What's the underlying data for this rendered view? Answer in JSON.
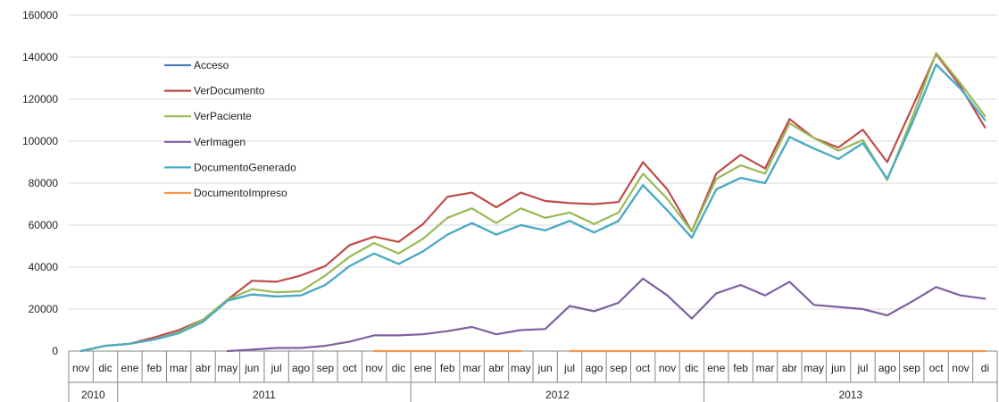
{
  "chart_data": {
    "type": "line",
    "title": "",
    "xlabel": "",
    "ylabel": "",
    "ylim": [
      0,
      160000
    ],
    "yticks": [
      0,
      20000,
      40000,
      60000,
      80000,
      100000,
      120000,
      140000,
      160000
    ],
    "y_tick_labels": [
      "0",
      "20000",
      "40000",
      "60000",
      "80000",
      "100000",
      "120000",
      "140000",
      "160000"
    ],
    "grid": "horizontal",
    "legend_position": "upper-left inside plot",
    "categories": [
      "nov",
      "dic",
      "ene",
      "feb",
      "mar",
      "abr",
      "may",
      "jun",
      "jul",
      "ago",
      "sep",
      "oct",
      "nov",
      "dic",
      "ene",
      "feb",
      "mar",
      "abr",
      "may",
      "jun",
      "jul",
      "ago",
      "sep",
      "oct",
      "nov",
      "dic",
      "ene",
      "feb",
      "mar",
      "abr",
      "may",
      "jun",
      "jul",
      "ago",
      "sep",
      "oct",
      "nov",
      "dic"
    ],
    "category_axis_visible_text": [
      "nov",
      "dic",
      "ene",
      "feb",
      "mar",
      "abr",
      "may",
      "jun",
      "jul",
      "ago",
      "sep",
      "oct",
      "nov",
      "dic",
      "ene",
      "feb",
      "mar",
      "abr",
      "may",
      "jun",
      "jul",
      "ago",
      "sep",
      "oct",
      "nov",
      "dic",
      "ene",
      "feb",
      "mar",
      "abr",
      "may",
      "jun",
      "jul",
      "ago",
      "sep",
      "oct",
      "nov",
      "di"
    ],
    "year_groups": [
      {
        "label": "2010",
        "start": 0,
        "end": 1
      },
      {
        "label": "2011",
        "start": 2,
        "end": 13
      },
      {
        "label": "2012",
        "start": 14,
        "end": 25
      },
      {
        "label": "2013",
        "start": 26,
        "end": 37
      }
    ],
    "series": [
      {
        "name": "Acceso",
        "color": "#4a7ebb",
        "values": [
          0,
          2500,
          3500,
          5500,
          8500,
          14000,
          24000,
          27000,
          26000,
          26500,
          31500,
          40500,
          46500,
          41500,
          47500,
          55500,
          61000,
          55500,
          60000,
          57500,
          62000,
          56500,
          62000,
          79000,
          67000,
          54000,
          77000,
          82500,
          80000,
          102000,
          96500,
          91500,
          99000,
          82000,
          108000,
          136500,
          125000,
          110000
        ]
      },
      {
        "name": "VerDocumento",
        "color": "#be4b48",
        "values": [
          0,
          2500,
          3500,
          6500,
          10000,
          15000,
          24500,
          33500,
          33000,
          36000,
          40500,
          50500,
          54500,
          52000,
          60500,
          73500,
          75500,
          68500,
          75500,
          71500,
          70500,
          70000,
          71000,
          90000,
          77000,
          57000,
          84500,
          93500,
          87000,
          110500,
          101500,
          97000,
          105500,
          90000,
          115500,
          141500,
          126000,
          106500
        ]
      },
      {
        "name": "VerPaciente",
        "color": "#98b954",
        "values": [
          0,
          2500,
          3500,
          5500,
          9000,
          15000,
          24500,
          29500,
          28000,
          28500,
          36000,
          45000,
          51500,
          46500,
          53500,
          63500,
          68000,
          61000,
          68000,
          63500,
          66000,
          60500,
          66000,
          84500,
          72500,
          57000,
          82000,
          88500,
          84500,
          108500,
          101500,
          95500,
          100500,
          81500,
          110500,
          142000,
          127500,
          112000
        ]
      },
      {
        "name": "VerImagen",
        "color": "#7d60a0",
        "values": [
          null,
          null,
          null,
          null,
          null,
          null,
          0,
          700,
          1500,
          1500,
          2500,
          4500,
          7500,
          7500,
          8000,
          9500,
          11500,
          8000,
          10000,
          10500,
          21500,
          19000,
          23000,
          34500,
          26500,
          15500,
          27500,
          31500,
          26500,
          33000,
          22000,
          21000,
          20000,
          17000,
          23500,
          30500,
          26500,
          25000
        ]
      },
      {
        "name": "DocumentoGenerado",
        "color": "#4bacc6",
        "values": [
          0,
          2500,
          3500,
          5500,
          8500,
          14000,
          24000,
          27000,
          26000,
          26500,
          31500,
          40500,
          46500,
          41500,
          47500,
          55500,
          61000,
          55500,
          60000,
          57500,
          62000,
          56500,
          62000,
          79000,
          67000,
          54000,
          77000,
          82500,
          80000,
          102000,
          96500,
          91500,
          99000,
          82000,
          108000,
          136500,
          125000,
          110000
        ]
      },
      {
        "name": "DocumentoImpreso",
        "color": "#f79646",
        "values": [
          null,
          null,
          null,
          null,
          null,
          null,
          null,
          null,
          null,
          null,
          null,
          null,
          0,
          0,
          0,
          0,
          0,
          0,
          0,
          null,
          0,
          0,
          0,
          0,
          0,
          0,
          0,
          0,
          0,
          0,
          0,
          0,
          0,
          0,
          0,
          0,
          0,
          0
        ]
      }
    ]
  }
}
